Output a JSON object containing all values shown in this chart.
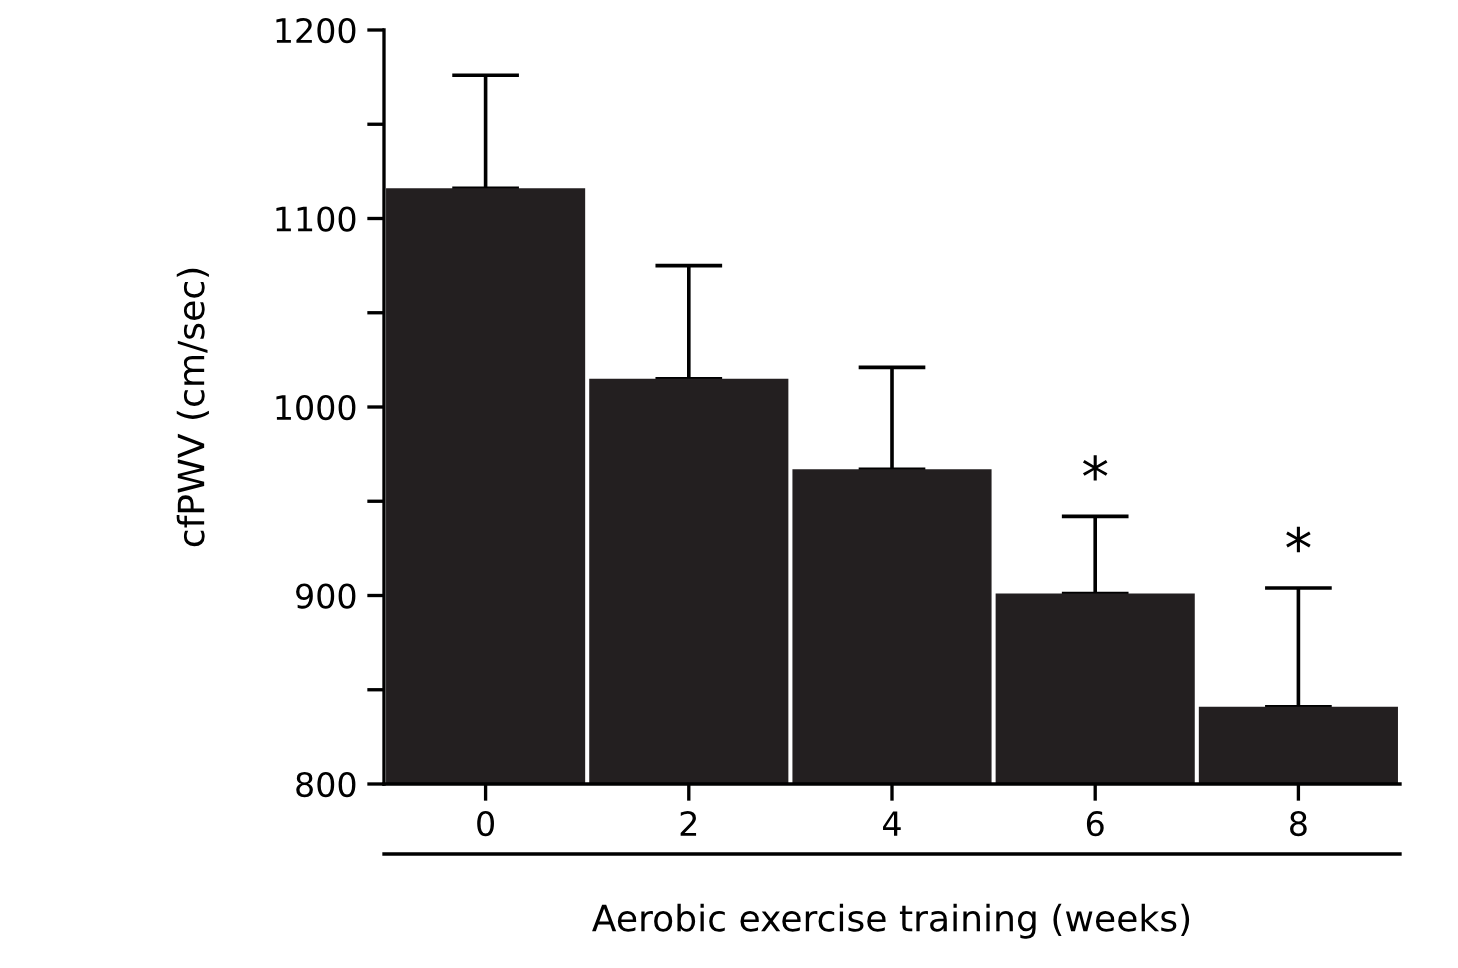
{
  "chart_data": {
    "type": "bar",
    "xlabel": "Aerobic exercise training (weeks)",
    "ylabel": "cfPWV (cm/sec)",
    "categories": [
      "0",
      "2",
      "4",
      "6",
      "8"
    ],
    "values": [
      1116,
      1015,
      967,
      901,
      841
    ],
    "errors": [
      [
        1116,
        1176
      ],
      [
        1015,
        1075
      ],
      [
        967,
        1021
      ],
      [
        901,
        942
      ],
      [
        841,
        904
      ]
    ],
    "color": "#231f20",
    "ylim": [
      800,
      1200
    ],
    "yticks": [
      800,
      {
        "value": 850,
        "label": null
      },
      900,
      {
        "value": 950,
        "label": null
      },
      1000,
      {
        "value": 1050,
        "label": null
      },
      1100,
      {
        "value": 1150,
        "label": null
      },
      1200
    ],
    "annotations": [
      {
        "text": "*",
        "x": "6",
        "y": 942
      },
      {
        "text": "*",
        "x": "8",
        "y": 904
      }
    ],
    "grid": false,
    "legend": false
  }
}
